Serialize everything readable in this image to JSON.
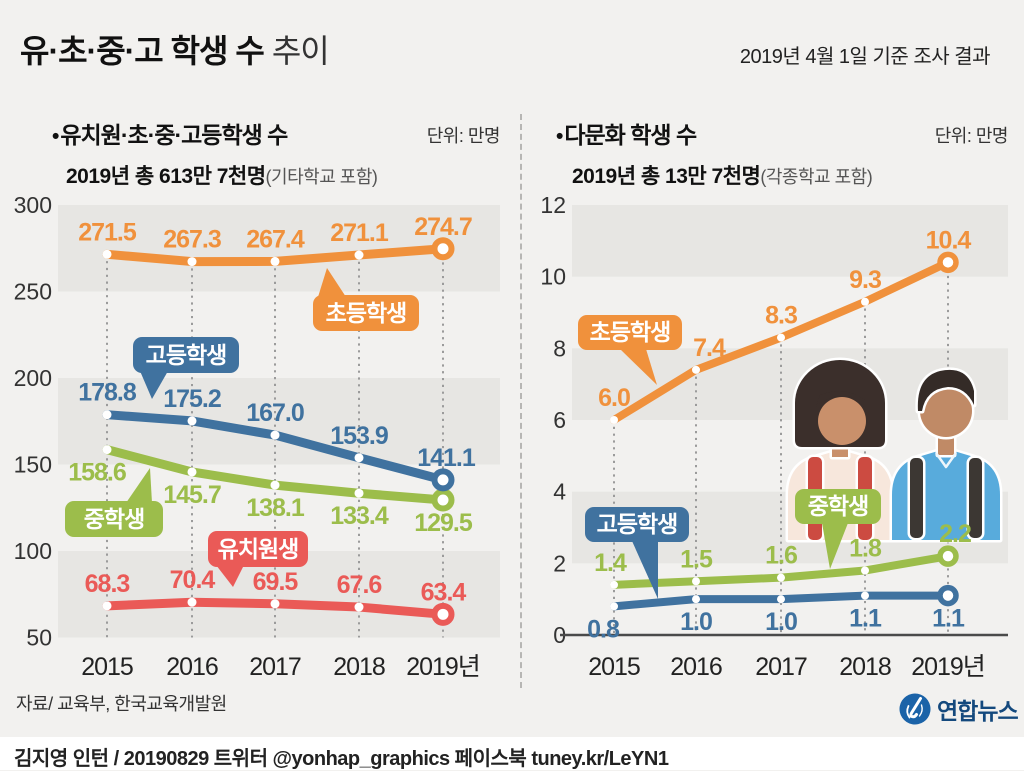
{
  "header": {
    "title_main": "유·초·중·고 학생 수",
    "title_sub": "추이",
    "date_note": "2019년 4월 1일 기준 조사 결과"
  },
  "chart_data": [
    {
      "type": "line",
      "bullet": "•",
      "title": "유치원·초·중·고등학생 수",
      "unit": "단위: 만명",
      "subtitle": "2019년 총 613만 7천명",
      "subtitle_note": "(기타학교 포함)",
      "categories": [
        "2015",
        "2016",
        "2017",
        "2018",
        "2019년"
      ],
      "ylim": [
        50,
        300
      ],
      "yticks": [
        300,
        250,
        200,
        150,
        100,
        50
      ],
      "grid": "alternating-bands",
      "legend_position": "inline-bubbles",
      "series": [
        {
          "name": "초등학생",
          "color": "#F0913C",
          "values": [
            271.5,
            267.3,
            267.4,
            271.1,
            274.7
          ],
          "labels": [
            "271.5",
            "267.3",
            "267.4",
            "271.1",
            "274.7"
          ]
        },
        {
          "name": "고등학생",
          "color": "#40729F",
          "values": [
            178.8,
            175.2,
            167.0,
            153.9,
            141.1
          ],
          "labels": [
            "178.8",
            "175.2",
            "167.0",
            "153.9",
            "141.1"
          ]
        },
        {
          "name": "중학생",
          "color": "#9CBD4B",
          "values": [
            158.6,
            145.7,
            138.1,
            133.4,
            129.5
          ],
          "labels": [
            "158.6",
            "145.7",
            "138.1",
            "133.4",
            "129.5"
          ]
        },
        {
          "name": "유치원생",
          "color": "#EA5A57",
          "values": [
            68.3,
            70.4,
            69.5,
            67.6,
            63.4
          ],
          "labels": [
            "68.3",
            "70.4",
            "69.5",
            "67.6",
            "63.4"
          ]
        }
      ]
    },
    {
      "type": "line",
      "bullet": "•",
      "title": "다문화 학생 수",
      "unit": "단위: 만명",
      "subtitle": "2019년 총 13만 7천명",
      "subtitle_note": "(각종학교 포함)",
      "categories": [
        "2015",
        "2016",
        "2017",
        "2018",
        "2019년"
      ],
      "ylim": [
        0,
        12
      ],
      "yticks": [
        12,
        10,
        8,
        6,
        4,
        2,
        0
      ],
      "grid": "alternating-bands",
      "legend_position": "inline-bubbles",
      "series": [
        {
          "name": "초등학생",
          "color": "#F0913C",
          "values": [
            6.0,
            7.4,
            8.3,
            9.3,
            10.4
          ],
          "labels": [
            "6.0",
            "7.4",
            "8.3",
            "9.3",
            "10.4"
          ]
        },
        {
          "name": "중학생",
          "color": "#9CBD4B",
          "values": [
            1.4,
            1.5,
            1.6,
            1.8,
            2.2
          ],
          "labels": [
            "1.4",
            "1.5",
            "1.6",
            "1.8",
            "2.2"
          ]
        },
        {
          "name": "고등학생",
          "color": "#40729F",
          "values": [
            0.8,
            1.0,
            1.0,
            1.1,
            1.1
          ],
          "labels": [
            "0.8",
            "1.0",
            "1.0",
            "1.1",
            "1.1"
          ]
        }
      ]
    }
  ],
  "footer": {
    "source": "자료/ 교육부, 한국교육개발원",
    "logo_text": "연합뉴스",
    "credit": "김지영 인턴 / 20190829 트위터 @yonhap_graphics  페이스북 tuney.kr/LeYN1"
  }
}
